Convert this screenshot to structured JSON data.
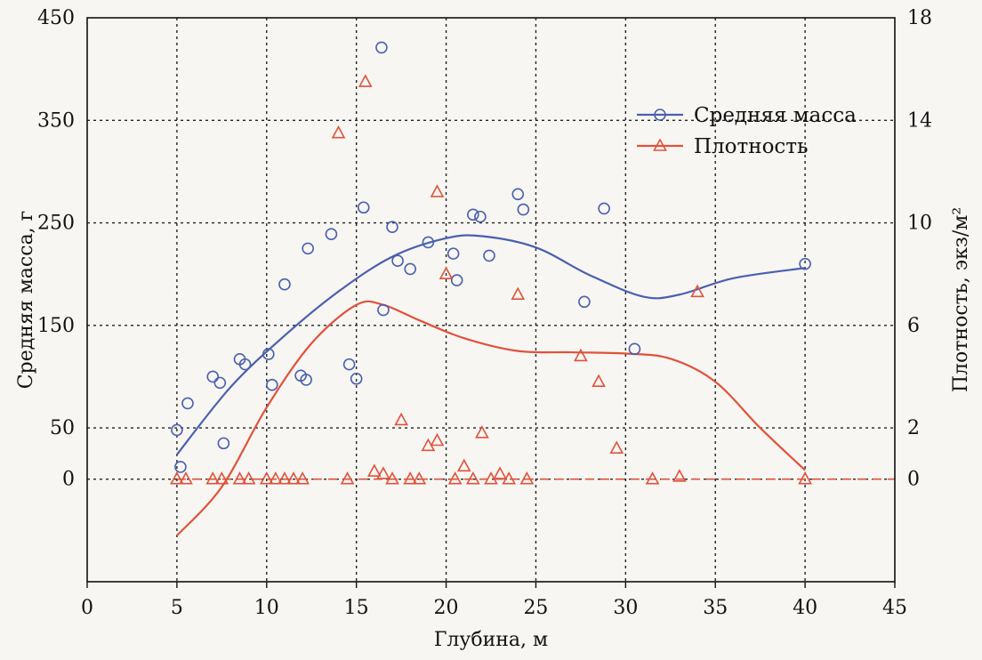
{
  "chart_data": {
    "type": "scatter",
    "xlabel": "Глубина, м",
    "ylabel_left": "Средняя масса, г",
    "ylabel_right": "Плотность, экз/м²",
    "xlim": [
      0,
      45
    ],
    "ylim_left": [
      -100,
      450
    ],
    "ylim_right": [
      -4,
      18
    ],
    "x_ticks": [
      0,
      5,
      10,
      15,
      20,
      25,
      30,
      35,
      40,
      45
    ],
    "y_left_ticks": [
      0,
      50,
      150,
      250,
      350,
      450
    ],
    "y_right_ticks": [
      0,
      2,
      6,
      10,
      14,
      18
    ],
    "grid": true,
    "legend_position": "top-right",
    "colors": {
      "mass": "#4a5fb0",
      "density": "#e0523c"
    },
    "series": [
      {
        "name": "Средняя масса",
        "axis": "left",
        "marker": "circle",
        "points": [
          [
            5.0,
            48
          ],
          [
            5.2,
            12
          ],
          [
            5.6,
            74
          ],
          [
            7.0,
            100
          ],
          [
            7.4,
            94
          ],
          [
            7.6,
            35
          ],
          [
            8.5,
            117
          ],
          [
            8.8,
            112
          ],
          [
            10.1,
            122
          ],
          [
            10.3,
            92
          ],
          [
            11.0,
            190
          ],
          [
            11.9,
            101
          ],
          [
            12.2,
            97
          ],
          [
            12.3,
            225
          ],
          [
            13.6,
            239
          ],
          [
            14.6,
            112
          ],
          [
            15.0,
            98
          ],
          [
            15.4,
            265
          ],
          [
            16.4,
            421
          ],
          [
            16.5,
            165
          ],
          [
            17.0,
            246
          ],
          [
            17.3,
            213
          ],
          [
            18.0,
            205
          ],
          [
            19.0,
            231
          ],
          [
            20.4,
            220
          ],
          [
            20.6,
            194
          ],
          [
            21.5,
            258
          ],
          [
            21.9,
            256
          ],
          [
            22.4,
            218
          ],
          [
            24.0,
            278
          ],
          [
            24.3,
            263
          ],
          [
            27.7,
            173
          ],
          [
            28.8,
            264
          ],
          [
            30.5,
            127
          ],
          [
            40.0,
            210
          ]
        ]
      },
      {
        "name": "Плотность",
        "axis": "right",
        "marker": "triangle",
        "points": [
          [
            5.0,
            0
          ],
          [
            5.5,
            0
          ],
          [
            7.0,
            0
          ],
          [
            7.5,
            0
          ],
          [
            8.5,
            0
          ],
          [
            9.0,
            0
          ],
          [
            10.0,
            0
          ],
          [
            10.5,
            0
          ],
          [
            11.0,
            0
          ],
          [
            11.5,
            0
          ],
          [
            12.0,
            0
          ],
          [
            14.0,
            13.5
          ],
          [
            14.5,
            0
          ],
          [
            15.5,
            15.5
          ],
          [
            16.0,
            0.3
          ],
          [
            16.5,
            0.2
          ],
          [
            17.0,
            0
          ],
          [
            17.5,
            2.3
          ],
          [
            18.0,
            0
          ],
          [
            18.5,
            0
          ],
          [
            19.0,
            1.3
          ],
          [
            19.5,
            1.5
          ],
          [
            19.5,
            11.2
          ],
          [
            20.0,
            8.0
          ],
          [
            20.5,
            0
          ],
          [
            21.0,
            0.5
          ],
          [
            21.5,
            0
          ],
          [
            22.0,
            1.8
          ],
          [
            22.5,
            0
          ],
          [
            23.0,
            0.2
          ],
          [
            23.5,
            0
          ],
          [
            24.0,
            7.2
          ],
          [
            24.5,
            0
          ],
          [
            27.5,
            4.8
          ],
          [
            28.5,
            3.8
          ],
          [
            29.5,
            1.2
          ],
          [
            31.5,
            0
          ],
          [
            33.0,
            0.1
          ],
          [
            34.0,
            7.3
          ],
          [
            40.0,
            0
          ]
        ]
      }
    ]
  }
}
